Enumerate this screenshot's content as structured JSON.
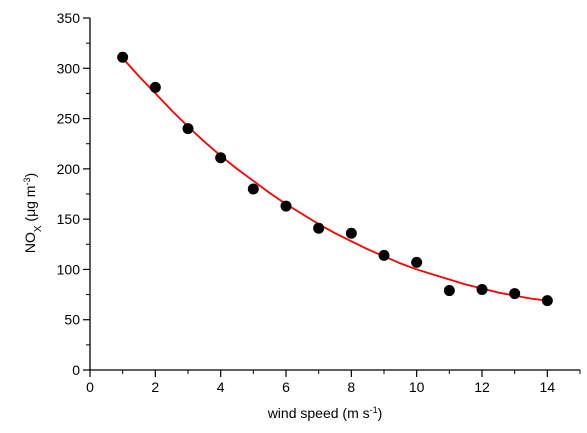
{
  "chart_data": {
    "type": "scatter",
    "xlabel": "wind speed (m s⁻¹)",
    "ylabel": "NOX (μg m⁻³)",
    "ylabel_parts": {
      "base": "NO",
      "subscript": "X",
      "unit_open": " (μg m",
      "unit_sup": "-3",
      "unit_close": ")"
    },
    "xlabel_parts": {
      "base": "wind speed (m s",
      "sup": "-1",
      "close": ")"
    },
    "xlim": [
      0,
      15
    ],
    "ylim": [
      0,
      350
    ],
    "xticks": [
      0,
      2,
      4,
      6,
      8,
      10,
      12,
      14
    ],
    "yticks": [
      0,
      50,
      100,
      150,
      200,
      250,
      300,
      350
    ],
    "grid": false,
    "series": [
      {
        "type": "scatter",
        "x": [
          1,
          2,
          3,
          4,
          5,
          6,
          7,
          8,
          9,
          10,
          11,
          12,
          13,
          14
        ],
        "y": [
          311,
          281,
          240,
          211,
          180,
          163,
          141,
          136,
          114,
          107,
          79,
          80,
          76,
          69
        ],
        "color": "#000000"
      },
      {
        "type": "line",
        "x": [
          1,
          1.5,
          2,
          2.5,
          3,
          3.5,
          4,
          4.5,
          5,
          5.5,
          6,
          6.5,
          7,
          7.5,
          8,
          8.5,
          9,
          9.5,
          10,
          10.5,
          11,
          11.5,
          12,
          12.5,
          13,
          13.5,
          14
        ],
        "y": [
          310,
          292,
          275,
          258,
          242,
          227,
          213,
          200,
          188,
          176,
          165,
          155,
          145,
          136,
          128,
          120,
          113,
          106,
          100,
          95,
          90,
          85,
          81,
          77,
          74,
          71,
          69
        ],
        "color": "#ff0000"
      }
    ]
  }
}
